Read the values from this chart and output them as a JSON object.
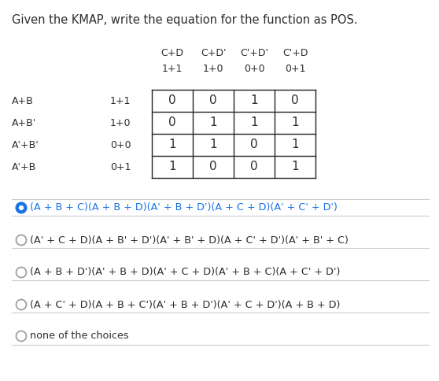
{
  "title": "Given the KMAP, write the equation for the function as POS.",
  "col_headers": [
    "C+D",
    "C+D'",
    "C'+D'",
    "C'+D"
  ],
  "col_subheaders": [
    "1+1",
    "1+0",
    "0+0",
    "0+1"
  ],
  "row_headers": [
    "A+B",
    "A+B'",
    "A'+B'",
    "A'+B"
  ],
  "row_subheaders": [
    "1+1",
    "1+0",
    "0+0",
    "0+1"
  ],
  "table_data": [
    [
      0,
      0,
      1,
      0
    ],
    [
      0,
      1,
      1,
      1
    ],
    [
      1,
      1,
      0,
      1
    ],
    [
      1,
      0,
      0,
      1
    ]
  ],
  "choices_display": [
    "(A + B + C)(A + B + D)(A' + B + D')(A + C + D)(A' + C' + D')",
    "(A' + C + D)(A + B' + D')(A' + B' + D)(A + C' + D')(A' + B' + C)",
    "(A + B + D')(A' + B + D)(A' + C + D)(A' + B + C)(A + C' + D')",
    "(A + C' + D)(A + B + C')(A' + B + D')(A' + C + D')(A + B + D)",
    "none of the choices"
  ],
  "selected_choice": 0,
  "background_color": "#ffffff",
  "text_color": "#2c2c2c",
  "selected_color": "#1a73e8",
  "table_border_color": "#222222",
  "separator_color": "#cccccc"
}
